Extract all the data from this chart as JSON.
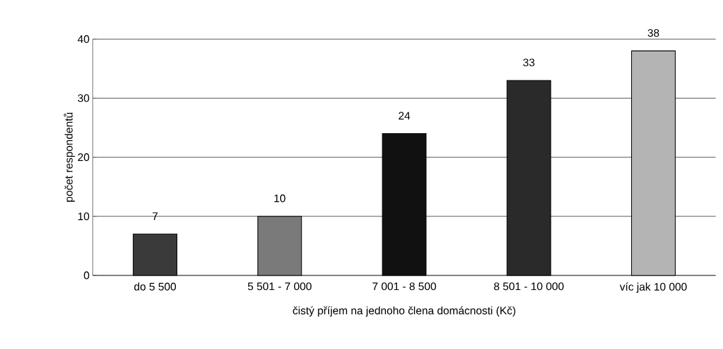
{
  "chart_data": {
    "type": "bar",
    "xlabel": "čistý příjem na jednoho člena domácnosti (Kč)",
    "ylabel": "počet respondentů",
    "categories": [
      "do 5 500",
      "5 501 - 7 000",
      "7 001 - 8 500",
      "8 501 - 10 000",
      "víc jak 10 000"
    ],
    "values": [
      7,
      10,
      24,
      33,
      38
    ],
    "colors": [
      "#3a3a3a",
      "#7a7a7a",
      "#111111",
      "#2a2a2a",
      "#b4b4b4"
    ],
    "ylim": [
      0,
      40
    ],
    "yticks": [
      0,
      10,
      20,
      30,
      40
    ],
    "grid": "y",
    "data_labels": true
  }
}
